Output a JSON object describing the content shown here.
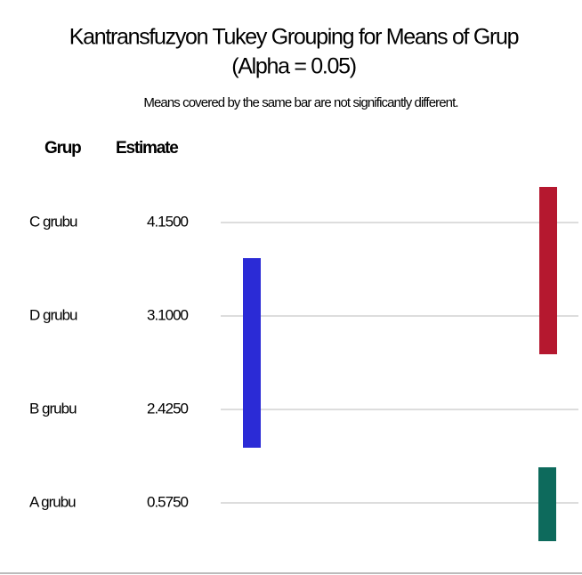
{
  "chart_data": {
    "type": "tukey",
    "title": "Kantransfuzyon Tukey Grouping for Means of Grup",
    "title_line2": "(Alpha = 0.05)",
    "subtitle": "Means covered by the same bar are not significantly different.",
    "columns": [
      "Grup",
      "Estimate"
    ],
    "categories": [
      "C grubu",
      "D grubu",
      "B grubu",
      "A grubu"
    ],
    "values": [
      4.15,
      3.1,
      2.425,
      0.575
    ],
    "value_labels": [
      "4.1500",
      "3.1000",
      "2.4250",
      "0.5750"
    ],
    "bars": [
      {
        "color": "#b5182f",
        "members": [
          "C grubu",
          "D grubu"
        ]
      },
      {
        "color": "#2b2bd6",
        "members": [
          "D grubu",
          "B grubu"
        ]
      },
      {
        "color": "#0d6a5c",
        "members": [
          "A grubu"
        ]
      }
    ]
  }
}
